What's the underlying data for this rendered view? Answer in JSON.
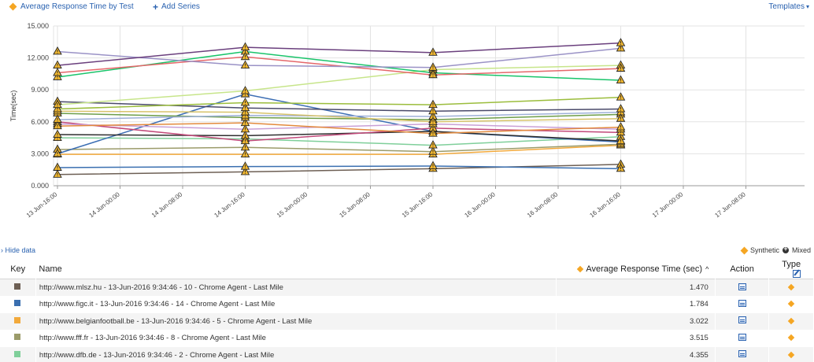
{
  "header": {
    "title": "Average Response Time by Test",
    "add_series": "Add Series",
    "templates": "Templates"
  },
  "chart_data": {
    "type": "line",
    "ylabel": "Time(sec)",
    "xlabel": "",
    "ylim": [
      0,
      15
    ],
    "y_ticks": [
      "0.000",
      "3.000",
      "6.000",
      "9.000",
      "12.000",
      "15.000"
    ],
    "x_ticks": [
      "13 Jun-16:00",
      "14 Jun-00:00",
      "14 Jun-08:00",
      "14 Jun-16:00",
      "15 Jun-00:00",
      "15 Jun-08:00",
      "15 Jun-16:00",
      "16 Jun-00:00",
      "16 Jun-08:00",
      "16 Jun-16:00",
      "17 Jun-00:00",
      "17 Jun-08:00"
    ],
    "x_points": [
      "13 Jun-16:00",
      "14 Jun-16:00",
      "15 Jun-16:00",
      "16 Jun-16:00"
    ],
    "grid": true,
    "series": [
      {
        "color": "#6d5f54",
        "values": [
          1.05,
          1.3,
          1.6,
          2.0
        ]
      },
      {
        "color": "#3a6fb0",
        "values": [
          1.7,
          1.8,
          1.85,
          1.6
        ]
      },
      {
        "color": "#f2a93b",
        "values": [
          2.95,
          2.95,
          2.95,
          3.8
        ]
      },
      {
        "color": "#9b9b6a",
        "values": [
          3.4,
          3.6,
          3.2,
          3.9
        ]
      },
      {
        "color": "#7fcf9a",
        "values": [
          4.5,
          4.4,
          3.8,
          4.6
        ]
      },
      {
        "color": "#3b6db3",
        "values": [
          3.0,
          8.6,
          5.1,
          4.1
        ]
      },
      {
        "color": "#2f2f2f",
        "values": [
          4.8,
          4.7,
          5.1,
          4.2
        ]
      },
      {
        "color": "#c2497a",
        "values": [
          6.0,
          4.2,
          5.4,
          5.0
        ]
      },
      {
        "color": "#c9a0d6",
        "values": [
          5.8,
          5.3,
          5.8,
          5.3
        ]
      },
      {
        "color": "#e38a3c",
        "values": [
          5.6,
          5.9,
          4.9,
          5.5
        ]
      },
      {
        "color": "#6e9e4a",
        "values": [
          6.8,
          6.4,
          6.2,
          6.7
        ]
      },
      {
        "color": "#9eb0d8",
        "values": [
          6.2,
          6.6,
          6.5,
          6.9
        ]
      },
      {
        "color": "#d7c36a",
        "values": [
          7.0,
          6.9,
          6.0,
          6.3
        ]
      },
      {
        "color": "#4a4a6a",
        "values": [
          7.9,
          7.3,
          7.0,
          7.2
        ]
      },
      {
        "color": "#9bbd3c",
        "values": [
          7.2,
          7.8,
          7.6,
          8.3
        ]
      },
      {
        "color": "#c7e58a",
        "values": [
          7.6,
          8.9,
          10.9,
          11.3
        ]
      },
      {
        "color": "#19c46a",
        "values": [
          10.2,
          12.6,
          10.6,
          9.9
        ]
      },
      {
        "color": "#e5676a",
        "values": [
          10.6,
          12.1,
          10.4,
          11.0
        ]
      },
      {
        "color": "#9a92c6",
        "values": [
          12.6,
          11.3,
          11.1,
          12.9
        ]
      },
      {
        "color": "#6a3f7d",
        "values": [
          11.3,
          13.0,
          12.5,
          13.4
        ]
      }
    ]
  },
  "legend": {
    "hide_data": "Hide data",
    "synthetic": "Synthetic",
    "mixed": "Mixed"
  },
  "table": {
    "headers": {
      "key": "Key",
      "name": "Name",
      "art": "Average Response Time (sec)",
      "action": "Action",
      "type": "Type"
    },
    "rows": [
      {
        "color": "#6d5f54",
        "name": "http://www.mlsz.hu - 13-Jun-2016 9:34:46 - 10 - Chrome Agent - Last Mile",
        "value": "1.470"
      },
      {
        "color": "#3a6fb0",
        "name": "http://www.figc.it - 13-Jun-2016 9:34:46 - 14 - Chrome Agent - Last Mile",
        "value": "1.784"
      },
      {
        "color": "#f2a93b",
        "name": "http://www.belgianfootball.be - 13-Jun-2016 9:34:46 - 5 - Chrome Agent - Last Mile",
        "value": "3.022"
      },
      {
        "color": "#9b9b6a",
        "name": "http://www.fff.fr - 13-Jun-2016 9:34:46 - 8 - Chrome Agent - Last Mile",
        "value": "3.515"
      },
      {
        "color": "#7fcf9a",
        "name": "http://www.dfb.de - 13-Jun-2016 9:34:46 - 2 - Chrome Agent - Last Mile",
        "value": "4.355"
      }
    ]
  }
}
